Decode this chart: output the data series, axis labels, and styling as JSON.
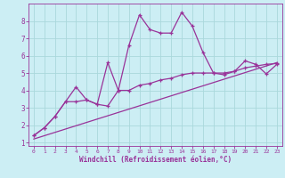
{
  "xlabel": "Windchill (Refroidissement éolien,°C)",
  "bg_color": "#cceef4",
  "line_color": "#993399",
  "grid_color": "#aad8dc",
  "line1_x": [
    0,
    1,
    2,
    3,
    4,
    5,
    6,
    7,
    8,
    9,
    10,
    11,
    12,
    13,
    14,
    15,
    16,
    17,
    18,
    19,
    20,
    21,
    22,
    23
  ],
  "line1_y": [
    1.4,
    1.85,
    2.5,
    3.35,
    4.2,
    3.45,
    3.2,
    5.6,
    4.0,
    6.6,
    8.35,
    7.5,
    7.3,
    7.3,
    8.5,
    7.7,
    6.2,
    5.0,
    4.9,
    5.1,
    5.7,
    5.5,
    4.95,
    5.5
  ],
  "line2_x": [
    0,
    1,
    2,
    3,
    4,
    5,
    6,
    7,
    8,
    9,
    10,
    11,
    12,
    13,
    14,
    15,
    16,
    17,
    18,
    19,
    20,
    21,
    22,
    23
  ],
  "line2_y": [
    1.4,
    1.85,
    2.5,
    3.35,
    3.35,
    3.45,
    3.2,
    3.1,
    4.0,
    4.0,
    4.3,
    4.4,
    4.6,
    4.7,
    4.9,
    5.0,
    5.0,
    5.0,
    5.0,
    5.1,
    5.3,
    5.4,
    5.5,
    5.55
  ],
  "trend_x": [
    0,
    23
  ],
  "trend_y": [
    1.2,
    5.6
  ],
  "ylim_min": 0.8,
  "ylim_max": 9.0,
  "xlim_min": -0.5,
  "xlim_max": 23.5,
  "yticks": [
    1,
    2,
    3,
    4,
    5,
    6,
    7,
    8
  ],
  "xticks": [
    0,
    1,
    2,
    3,
    4,
    5,
    6,
    7,
    8,
    9,
    10,
    11,
    12,
    13,
    14,
    15,
    16,
    17,
    18,
    19,
    20,
    21,
    22,
    23
  ]
}
